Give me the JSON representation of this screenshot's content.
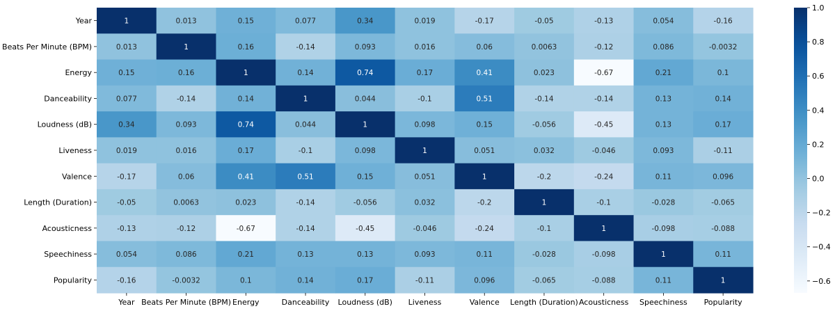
{
  "chart_data": {
    "type": "heatmap",
    "title": "",
    "xlabel": "",
    "ylabel": "",
    "colormap": "Blues",
    "value_range": [
      -0.67,
      1.0
    ],
    "labels": [
      "Year",
      "Beats Per Minute (BPM)",
      "Energy",
      "Danceability",
      "Loudness (dB)",
      "Liveness",
      "Valence",
      "Length (Duration)",
      "Acousticness",
      "Speechiness",
      "Popularity"
    ],
    "cell_labels": [
      [
        "1",
        "0.013",
        "0.15",
        "0.077",
        "0.34",
        "0.019",
        "-0.17",
        "-0.05",
        "-0.13",
        "0.054",
        "-0.16"
      ],
      [
        "0.013",
        "1",
        "0.16",
        "-0.14",
        "0.093",
        "0.016",
        "0.06",
        "0.0063",
        "-0.12",
        "0.086",
        "-0.0032"
      ],
      [
        "0.15",
        "0.16",
        "1",
        "0.14",
        "0.74",
        "0.17",
        "0.41",
        "0.023",
        "-0.67",
        "0.21",
        "0.1"
      ],
      [
        "0.077",
        "-0.14",
        "0.14",
        "1",
        "0.044",
        "-0.1",
        "0.51",
        "-0.14",
        "-0.14",
        "0.13",
        "0.14"
      ],
      [
        "0.34",
        "0.093",
        "0.74",
        "0.044",
        "1",
        "0.098",
        "0.15",
        "-0.056",
        "-0.45",
        "0.13",
        "0.17"
      ],
      [
        "0.019",
        "0.016",
        "0.17",
        "-0.1",
        "0.098",
        "1",
        "0.051",
        "0.032",
        "-0.046",
        "0.093",
        "-0.11"
      ],
      [
        "-0.17",
        "0.06",
        "0.41",
        "0.51",
        "0.15",
        "0.051",
        "1",
        "-0.2",
        "-0.24",
        "0.11",
        "0.096"
      ],
      [
        "-0.05",
        "0.0063",
        "0.023",
        "-0.14",
        "-0.056",
        "0.032",
        "-0.2",
        "1",
        "-0.1",
        "-0.028",
        "-0.065"
      ],
      [
        "-0.13",
        "-0.12",
        "-0.67",
        "-0.14",
        "-0.45",
        "-0.046",
        "-0.24",
        "-0.1",
        "1",
        "-0.098",
        "-0.088"
      ],
      [
        "0.054",
        "0.086",
        "0.21",
        "0.13",
        "0.13",
        "0.093",
        "0.11",
        "-0.028",
        "-0.098",
        "1",
        "0.11"
      ],
      [
        "-0.16",
        "-0.0032",
        "0.1",
        "0.14",
        "0.17",
        "-0.11",
        "0.096",
        "-0.065",
        "-0.088",
        "0.11",
        "1"
      ]
    ],
    "colorbar": {
      "ticks": [
        -0.6,
        -0.4,
        -0.2,
        0.0,
        0.2,
        0.4,
        0.6,
        0.8,
        1.0
      ],
      "tick_labels": [
        "−0.6",
        "−0.4",
        "−0.2",
        "0.0",
        "0.2",
        "0.4",
        "0.6",
        "0.8",
        "1.0"
      ]
    }
  }
}
